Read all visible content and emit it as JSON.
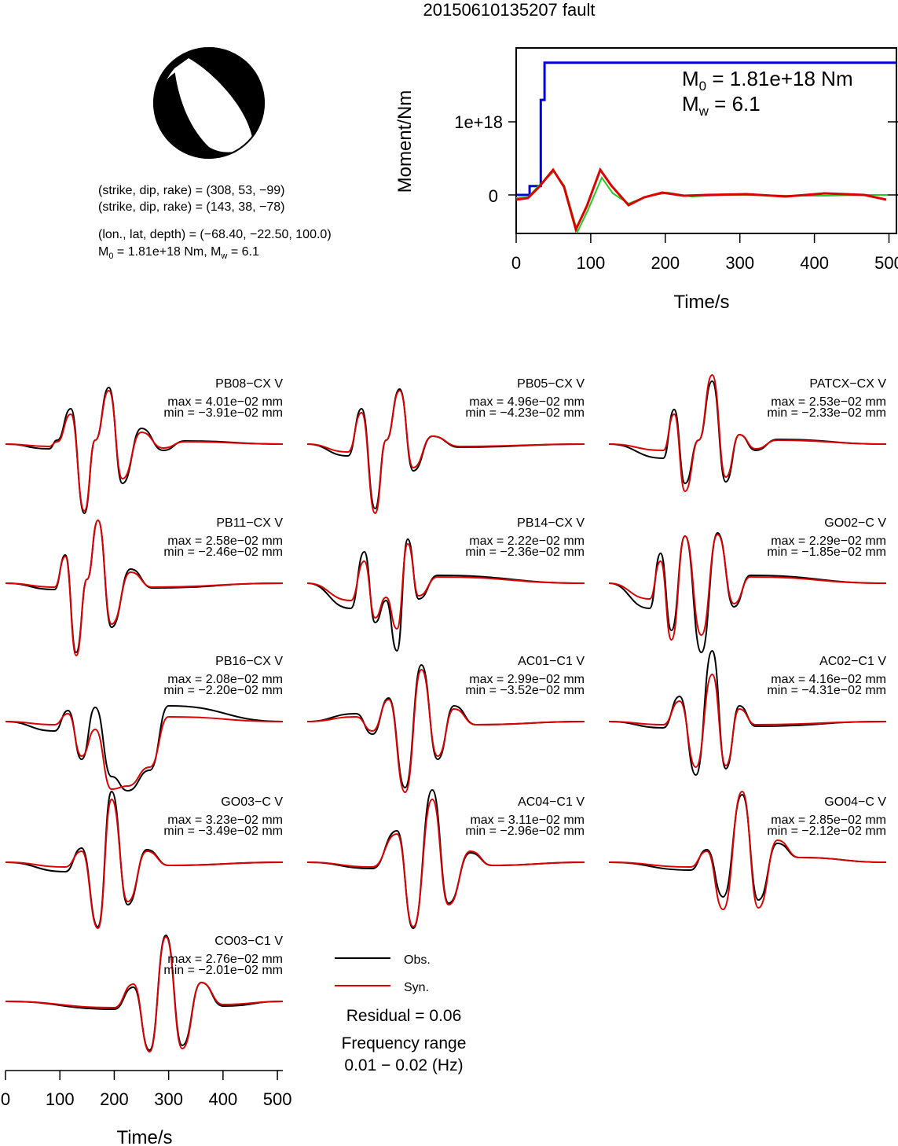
{
  "title": "20150610135207 fault",
  "mechanism": {
    "line1": "(strike, dip, rake) = (308, 53, −99)",
    "line2": "(strike, dip, rake) = (143, 38, −78)",
    "line3": "(lon., lat, depth) = (−68.40, −22.50, 100.0)",
    "line4_m0_prefix": "M",
    "line4_m0_sub": "0",
    "line4_m0_rest": " = 1.81e+18 Nm, M",
    "line4_mw_sub": "w",
    "line4_mw_rest": " = 6.1",
    "beachball_icon": "focal-mechanism-beachball-icon"
  },
  "moment_panel": {
    "ylabel": "Moment/Nm",
    "xlabel": "Time/s",
    "m0_label_prefix": "M",
    "m0_label_sub": "0",
    "m0_label_rest": " = 1.81e+18 Nm",
    "mw_label_prefix": "M",
    "mw_label_sub": "w",
    "mw_label_rest": " = 6.1",
    "y_tick_labels": [
      "1e+18",
      "0"
    ],
    "x_tick_labels": [
      "0",
      "100",
      "200",
      "300",
      "400",
      "500"
    ],
    "colors": {
      "moment": "#0000dd",
      "stf_syn": "#dd0000",
      "stf_alt": "#22cc22"
    }
  },
  "legend": {
    "obs_label": "Obs.",
    "syn_label": "Syn.",
    "residual": "Residual = 0.06",
    "freq_title": "Frequency range",
    "freq_range": "0.01 − 0.02 (Hz)",
    "obs_color": "#000000",
    "syn_color": "#dd0000"
  },
  "waveform_axis": {
    "xlabel": "Time/s",
    "x_tick_labels": [
      "0",
      "100",
      "200",
      "300",
      "400",
      "500"
    ]
  },
  "chart_data": [
    {
      "type": "line",
      "title": "",
      "xlabel": "Time/s",
      "ylabel": "Moment/Nm",
      "xlim": [
        0,
        510
      ],
      "y_ticks": [
        0,
        1e+18
      ],
      "series": [
        {
          "x": [
            0,
            18,
            18,
            33,
            33,
            38,
            38,
            510
          ],
          "y": [
            0,
            0,
            1.2e+17,
            1.2e+17,
            1.3e+18,
            1.3e+18,
            1.81e+18,
            1.81e+18
          ]
        }
      ]
    },
    {
      "type": "line",
      "xlabel": "Time/s",
      "xlim": [
        0,
        510
      ],
      "note_stations": "waveform fits",
      "stations": [
        {
          "name": "PB08−CX V",
          "max": "max = 4.01e−02 mm",
          "min": "min = −3.91e−02 mm"
        },
        {
          "name": "PB05−CX V",
          "max": "max = 4.96e−02 mm",
          "min": "min = −4.23e−02 mm"
        },
        {
          "name": "PATCX−CX V",
          "max": "max = 2.53e−02 mm",
          "min": "min = −2.33e−02 mm"
        },
        {
          "name": "PB11−CX V",
          "max": "max = 2.58e−02 mm",
          "min": "min = −2.46e−02 mm"
        },
        {
          "name": "PB14−CX V",
          "max": "max = 2.22e−02 mm",
          "min": "min = −2.36e−02 mm"
        },
        {
          "name": "GO02−C V",
          "max": "max = 2.29e−02 mm",
          "min": "min = −1.85e−02 mm"
        },
        {
          "name": "PB16−CX V",
          "max": "max = 2.08e−02 mm",
          "min": "min = −2.20e−02 mm"
        },
        {
          "name": "AC01−C1 V",
          "max": "max = 2.99e−02 mm",
          "min": "min = −3.52e−02 mm"
        },
        {
          "name": "AC02−C1 V",
          "max": "max = 4.16e−02 mm",
          "min": "min = −4.31e−02 mm"
        },
        {
          "name": "GO03−C V",
          "max": "max = 3.23e−02 mm",
          "min": "min = −3.49e−02 mm"
        },
        {
          "name": "AC04−C1 V",
          "max": "max = 3.11e−02 mm",
          "min": "min = −2.96e−02 mm"
        },
        {
          "name": "GO04−C V",
          "max": "max = 2.85e−02 mm",
          "min": "min = −2.12e−02 mm"
        },
        {
          "name": "CO03−C1 V",
          "max": "max = 2.76e−02 mm",
          "min": "min = −2.01e−02 mm"
        }
      ]
    }
  ]
}
